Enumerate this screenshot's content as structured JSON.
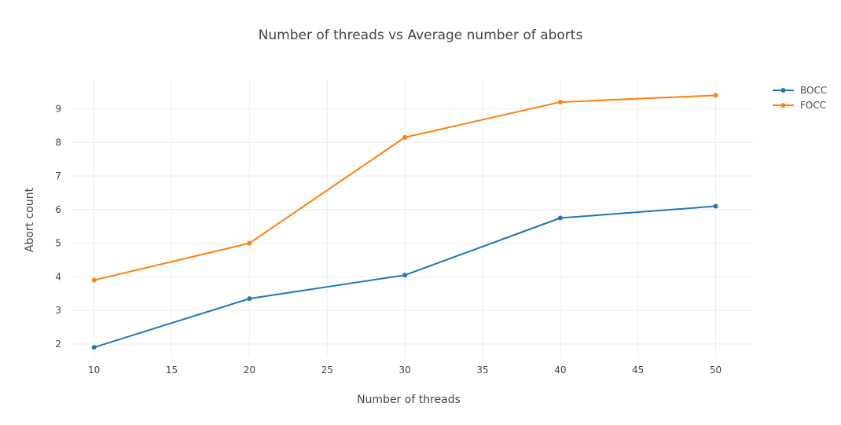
{
  "chart_data": {
    "type": "line",
    "title": "Number of threads vs Average number of aborts",
    "xlabel": "Number of threads",
    "ylabel": "Abort count",
    "x": [
      10,
      20,
      30,
      40,
      50
    ],
    "xticks": [
      "10",
      "15",
      "20",
      "25",
      "30",
      "35",
      "40",
      "45",
      "50"
    ],
    "yticks": [
      "2",
      "3",
      "4",
      "5",
      "6",
      "7",
      "8",
      "9"
    ],
    "xlim": [
      8.5,
      52.5
    ],
    "ylim": [
      1.6,
      9.9
    ],
    "grid": true,
    "legend_position": "top-right",
    "series": [
      {
        "name": "BOCC",
        "color": "#1f77b4",
        "values": [
          1.9,
          3.35,
          4.05,
          5.75,
          6.1
        ]
      },
      {
        "name": "FOCC",
        "color": "#ff7f0e",
        "values": [
          3.9,
          5.0,
          8.15,
          9.2,
          9.4
        ]
      }
    ]
  }
}
